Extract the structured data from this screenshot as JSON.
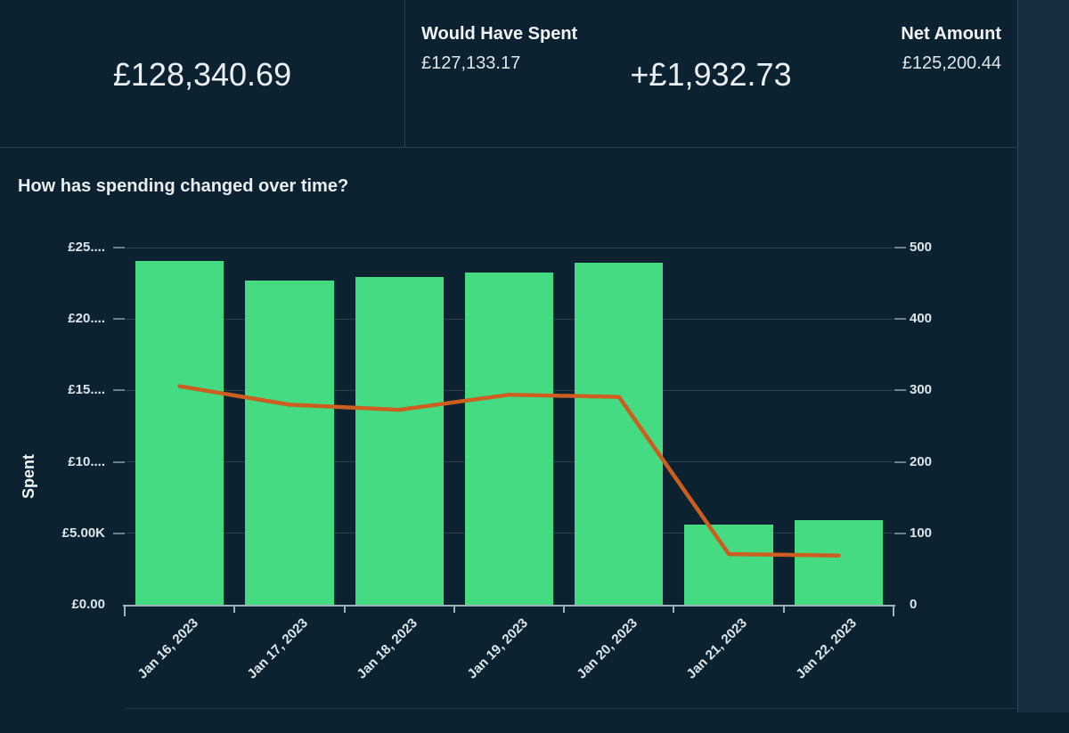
{
  "header": {
    "total_spent": "£128,340.69",
    "would_have_spent": {
      "label": "Would Have Spent",
      "value": "£127,133.17"
    },
    "difference": "+£1,932.73",
    "net_amount": {
      "label": "Net Amount",
      "value": "£125,200.44"
    }
  },
  "chart_data": {
    "type": "bar",
    "title": "How has spending changed over time?",
    "ylabel_left": "Spent",
    "categories": [
      "Jan 16, 2023",
      "Jan 17, 2023",
      "Jan 18, 2023",
      "Jan 19, 2023",
      "Jan 20, 2023",
      "Jan 21, 2023",
      "Jan 22, 2023"
    ],
    "series": [
      {
        "name": "spent-bars",
        "type": "bar",
        "axis": "left",
        "color": "#44db82",
        "values": [
          24050,
          22700,
          22950,
          23250,
          23950,
          5600,
          5900
        ]
      },
      {
        "name": "overlay-line",
        "type": "line",
        "axis": "right",
        "color": "#cc5e20",
        "values": [
          306,
          280,
          273,
          294,
          291,
          71,
          69
        ]
      }
    ],
    "axis_left": {
      "min": 0,
      "max": 25000,
      "tick_values": [
        0,
        5000,
        10000,
        15000,
        20000,
        25000
      ],
      "tick_labels": [
        "£0.00",
        "£5.00K",
        "£10....",
        "£15....",
        "£20....",
        "£25...."
      ]
    },
    "axis_right": {
      "min": 0,
      "max": 500,
      "tick_values": [
        0,
        100,
        200,
        300,
        400,
        500
      ],
      "tick_labels": [
        "0",
        "100",
        "200",
        "300",
        "400",
        "500"
      ]
    },
    "grid": true,
    "legend_position": "none"
  },
  "colors": {
    "background": "#0d2230",
    "right_strip": "#162d3d",
    "bar_green": "#44db82",
    "line_orange": "#cc5e20",
    "divider": "#2c4150",
    "axis_line": "#9fb2b6"
  }
}
